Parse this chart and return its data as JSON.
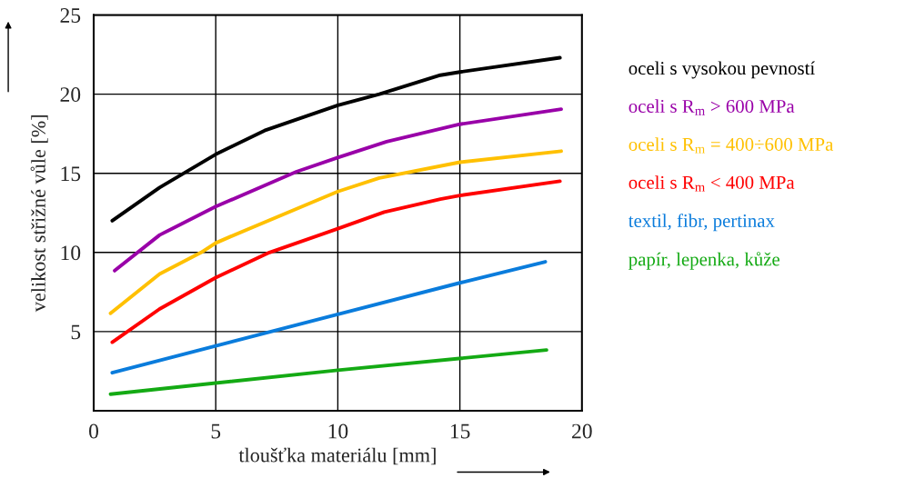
{
  "chart_data": {
    "type": "line",
    "xlabel": "tloušťka materiálu [mm]",
    "ylabel": "velikost střižné vůle [%]",
    "xlim": [
      0,
      20
    ],
    "xticks": [
      0,
      5,
      10,
      15,
      20
    ],
    "ylim": [
      0,
      25
    ],
    "yticks": [
      5,
      10,
      15,
      20,
      25
    ],
    "grid": true,
    "legend": "right",
    "marker": "none",
    "line_style": "solid",
    "series": [
      {
        "name": "oceli s vysokou pevností",
        "color": "#000000",
        "x": [
          0.76,
          2.7,
          5,
          7.0,
          10,
          11.7,
          14.2,
          15,
          19.1
        ],
        "values": [
          12.0,
          14.1,
          16.2,
          17.7,
          19.3,
          20.0,
          21.2,
          21.4,
          22.3
        ]
      },
      {
        "name": "oceli s R$_{m}$ > 600 MPa",
        "color": "#9900a8",
        "x": [
          0.86,
          2.7,
          5,
          8.3,
          10,
          12.0,
          15,
          19.15
        ],
        "values": [
          8.85,
          11.1,
          12.9,
          15.1,
          16.0,
          17.0,
          18.1,
          19.05
        ]
      },
      {
        "name": "oceli s R$_{m}$ = 400÷600 MPa",
        "color": "#ffc000",
        "x": [
          0.69,
          2.7,
          4.4,
          5,
          5.6,
          10,
          11.7,
          15,
          19.15
        ],
        "values": [
          6.16,
          8.64,
          10.0,
          10.6,
          11.0,
          13.85,
          14.7,
          15.7,
          16.4
        ]
      },
      {
        "name": "oceli s R$_{m}$ < 400 MPa",
        "color": "#ff0000",
        "x": [
          0.76,
          2.7,
          5,
          7.2,
          10,
          11.9,
          14.2,
          15,
          19.1
        ],
        "values": [
          4.33,
          6.43,
          8.41,
          10.0,
          11.5,
          12.55,
          13.37,
          13.6,
          14.5
        ]
      },
      {
        "name": "textil, fibr, pertinax",
        "color": "#0a7cdc",
        "x": [
          0.76,
          5,
          10,
          15,
          18.5
        ],
        "values": [
          2.4,
          4.1,
          6.09,
          8.08,
          9.41
        ]
      },
      {
        "name": "papír, lepenka, kůže",
        "color": "#14aa14",
        "x": [
          0.69,
          10,
          18.55
        ],
        "values": [
          1.05,
          2.56,
          3.84
        ]
      }
    ]
  }
}
